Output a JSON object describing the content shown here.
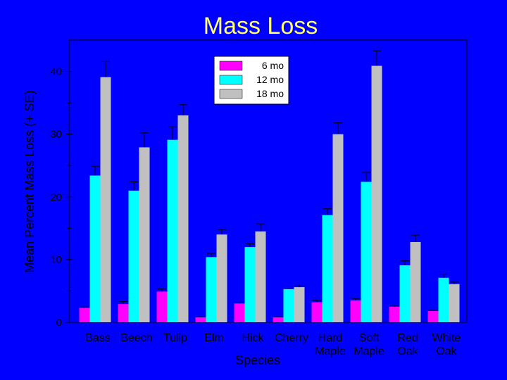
{
  "chart_data": {
    "type": "bar",
    "title": "Mass Loss",
    "xlabel": "Species",
    "ylabel": "Mean Percent Mass Loss (+ SE)",
    "ylim": [
      0,
      45
    ],
    "yticks": [
      0,
      10,
      20,
      30,
      40
    ],
    "categories": [
      [
        "Bass"
      ],
      [
        "Beech"
      ],
      [
        "Tulip"
      ],
      [
        "Elm"
      ],
      [
        "Hick"
      ],
      [
        "Cherry"
      ],
      [
        "Hard",
        "Maple"
      ],
      [
        "Soft",
        "Maple"
      ],
      [
        "Red",
        "Oak"
      ],
      [
        "White",
        "Oak"
      ]
    ],
    "series": [
      {
        "name": "6 mo",
        "color": "#ff00ff",
        "values": [
          2.3,
          2.9,
          4.9,
          0.8,
          3.0,
          0.8,
          3.2,
          3.5,
          2.5,
          1.8
        ],
        "errors": [
          0.2,
          0.4,
          0.4,
          0.1,
          0.2,
          0.1,
          0.3,
          0.3,
          0.2,
          0.1
        ]
      },
      {
        "name": "12 mo",
        "color": "#00ffff",
        "values": [
          23.4,
          21.0,
          29.1,
          10.4,
          12.0,
          5.3,
          17.1,
          22.4,
          9.1,
          7.1
        ],
        "errors": [
          1.5,
          1.4,
          2.1,
          0.6,
          0.5,
          0.1,
          1.0,
          1.5,
          0.7,
          0.6
        ]
      },
      {
        "name": "18 mo",
        "color": "#c0c0c0",
        "values": [
          39.1,
          27.9,
          33.0,
          14.0,
          14.5,
          5.6,
          30.0,
          40.9,
          12.8,
          6.1
        ],
        "errors": [
          2.5,
          2.3,
          1.7,
          0.8,
          1.2,
          0.3,
          1.8,
          2.4,
          1.1,
          0.3
        ]
      }
    ],
    "legend": {
      "position": "top-center"
    },
    "grid": false
  }
}
